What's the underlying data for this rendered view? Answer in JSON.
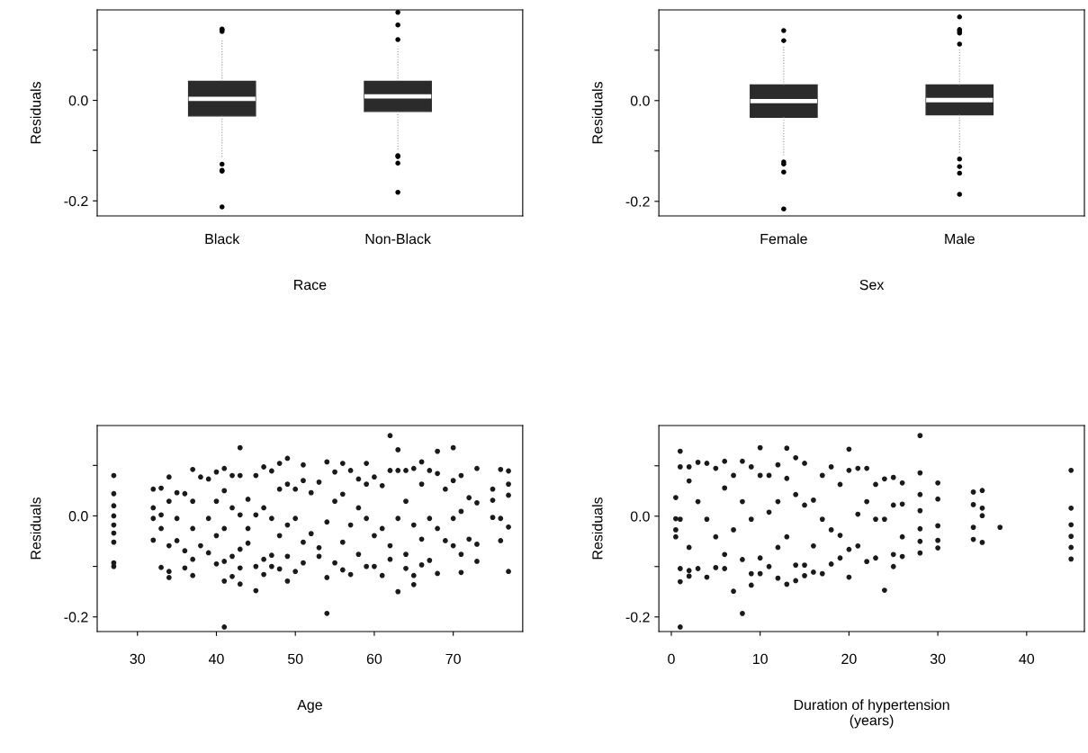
{
  "chart_data": [
    {
      "type": "box",
      "categories": [
        "Black",
        "Non-Black"
      ],
      "xlabel": "Race",
      "ylabel": "Residuals",
      "color": "#2b2b2b",
      "ylim": [
        -0.23,
        0.18
      ],
      "yticks": [
        {
          "value": -0.2,
          "label": "-0.2"
        },
        {
          "value": -0.1,
          "label": null
        },
        {
          "value": 0,
          "label": "0.0"
        },
        {
          "value": 0.1,
          "label": null
        }
      ],
      "boxes": [
        {
          "low": -0.114,
          "q1": -0.031,
          "median": 0.003,
          "q3": 0.038,
          "high": 0.122,
          "outliers": [
            0.142,
            0.14,
            0.137,
            -0.127,
            -0.139,
            -0.141,
            -0.212
          ]
        },
        {
          "low": -0.099,
          "q1": -0.022,
          "median": 0.008,
          "q3": 0.038,
          "high": 0.107,
          "outliers": [
            0.175,
            0.15,
            0.121,
            -0.11,
            -0.112,
            -0.125,
            -0.183
          ]
        }
      ]
    },
    {
      "type": "box",
      "categories": [
        "Female",
        "Male"
      ],
      "xlabel": "Sex",
      "ylabel": "Residuals",
      "color": "#2b2b2b",
      "ylim": [
        -0.229,
        0.18
      ],
      "yticks": [
        {
          "value": -0.2,
          "label": "-0.2"
        },
        {
          "value": -0.1,
          "label": null
        },
        {
          "value": 0,
          "label": "0.0"
        },
        {
          "value": 0.1,
          "label": null
        }
      ],
      "boxes": [
        {
          "low": -0.111,
          "q1": -0.033,
          "median": -0.001,
          "q3": 0.031,
          "high": 0.108,
          "outliers": [
            0.139,
            0.119,
            -0.122,
            -0.126,
            -0.142,
            -0.215
          ]
        },
        {
          "low": -0.104,
          "q1": -0.028,
          "median": 0.001,
          "q3": 0.031,
          "high": 0.101,
          "outliers": [
            0.166,
            0.141,
            0.138,
            0.134,
            0.112,
            -0.116,
            -0.131,
            -0.144,
            -0.186
          ]
        }
      ]
    },
    {
      "type": "scatter",
      "xlabel": "Age",
      "ylabel": "Residuals",
      "color": "#1a1a1a",
      "marker": "circle",
      "xlim": [
        24.9,
        78.8
      ],
      "xticks": [
        30,
        40,
        50,
        60,
        70
      ],
      "ylim": [
        -0.229,
        0.179
      ],
      "yticks": [
        {
          "value": -0.2,
          "label": "-0.2"
        },
        {
          "value": -0.1,
          "label": null
        },
        {
          "value": 0,
          "label": "0.0"
        },
        {
          "value": 0.1,
          "label": null
        }
      ],
      "x": [
        27,
        27,
        27,
        27,
        27,
        27,
        27,
        27,
        27,
        32,
        32,
        32,
        32,
        33,
        33,
        33,
        33,
        34,
        34,
        34,
        34,
        34,
        35,
        35,
        35,
        36,
        36,
        36,
        37,
        37,
        37,
        37,
        37,
        38,
        38,
        39,
        39,
        39,
        40,
        40,
        40,
        40,
        41,
        41,
        41,
        41,
        41,
        41,
        42,
        42,
        42,
        42,
        43,
        43,
        43,
        43,
        43,
        43,
        44,
        44,
        44,
        45,
        45,
        45,
        45,
        46,
        46,
        46,
        46,
        47,
        47,
        47,
        47,
        48,
        48,
        48,
        48,
        49,
        49,
        49,
        49,
        49,
        50,
        50,
        50,
        51,
        51,
        51,
        51,
        52,
        52,
        53,
        53,
        53,
        54,
        54,
        54,
        54,
        55,
        55,
        55,
        56,
        56,
        56,
        56,
        57,
        57,
        57,
        58,
        58,
        58,
        59,
        59,
        59,
        59,
        60,
        60,
        60,
        61,
        61,
        61,
        62,
        62,
        62,
        62,
        63,
        63,
        63,
        63,
        64,
        64,
        64,
        64,
        65,
        65,
        65,
        65,
        66,
        66,
        66,
        66,
        67,
        67,
        67,
        68,
        68,
        68,
        68,
        69,
        69,
        70,
        70,
        70,
        70,
        71,
        71,
        71,
        71,
        72,
        72,
        73,
        73,
        73,
        73,
        75,
        75,
        75,
        76,
        76,
        76,
        77,
        77,
        77,
        77,
        77
      ],
      "values": [
        0.08,
        0.044,
        0.02,
        0.0,
        -0.018,
        -0.034,
        -0.052,
        -0.093,
        -0.1,
        0.053,
        0.016,
        -0.005,
        -0.048,
        0.055,
        0.002,
        -0.025,
        -0.102,
        0.077,
        0.029,
        -0.059,
        -0.11,
        -0.122,
        0.046,
        -0.005,
        -0.049,
        0.044,
        -0.069,
        -0.103,
        0.092,
        0.029,
        -0.025,
        -0.086,
        -0.118,
        0.077,
        -0.059,
        0.073,
        -0.005,
        -0.073,
        0.087,
        0.029,
        -0.039,
        -0.095,
        0.094,
        0.05,
        -0.025,
        -0.09,
        -0.129,
        -0.22,
        0.08,
        0.016,
        -0.08,
        -0.12,
        0.135,
        0.08,
        0.002,
        -0.066,
        -0.103,
        -0.135,
        0.033,
        -0.025,
        -0.054,
        0.08,
        0.002,
        -0.1,
        -0.148,
        0.097,
        0.016,
        -0.086,
        -0.116,
        0.089,
        -0.005,
        -0.078,
        -0.1,
        0.104,
        0.053,
        -0.039,
        -0.105,
        0.114,
        0.063,
        -0.018,
        -0.08,
        -0.129,
        0.053,
        -0.005,
        -0.11,
        0.101,
        0.07,
        -0.052,
        -0.093,
        0.046,
        -0.035,
        0.067,
        -0.063,
        -0.08,
        0.107,
        -0.012,
        -0.122,
        -0.193,
        0.087,
        0.029,
        -0.093,
        0.104,
        0.043,
        -0.052,
        -0.107,
        0.09,
        -0.018,
        -0.116,
        0.073,
        0.016,
        -0.076,
        0.104,
        0.063,
        -0.005,
        -0.1,
        0.077,
        -0.039,
        -0.1,
        0.06,
        -0.025,
        -0.118,
        0.159,
        0.09,
        -0.059,
        -0.086,
        0.131,
        0.09,
        -0.005,
        -0.15,
        0.09,
        0.029,
        -0.076,
        -0.104,
        0.094,
        -0.018,
        -0.118,
        -0.136,
        0.107,
        0.063,
        -0.046,
        -0.097,
        0.09,
        -0.005,
        -0.088,
        0.128,
        0.084,
        -0.025,
        -0.114,
        0.053,
        -0.049,
        0.135,
        0.07,
        -0.005,
        -0.059,
        0.08,
        0.009,
        -0.076,
        -0.112,
        0.036,
        -0.046,
        0.094,
        0.026,
        -0.056,
        -0.09,
        0.053,
        0.031,
        -0.003,
        0.092,
        -0.005,
        -0.049,
        0.089,
        0.063,
        0.041,
        -0.022,
        -0.11
      ]
    },
    {
      "type": "scatter",
      "xlabel": "Duration of hypertension\n(years)",
      "ylabel": "Residuals",
      "color": "#1a1a1a",
      "marker": "circle",
      "xlim": [
        -1.4,
        46.5
      ],
      "xticks": [
        0,
        10,
        20,
        30,
        40
      ],
      "ylim": [
        -0.229,
        0.18
      ],
      "yticks": [
        {
          "value": -0.2,
          "label": "-0.2"
        },
        {
          "value": -0.1,
          "label": null
        },
        {
          "value": 0,
          "label": "0.0"
        },
        {
          "value": 0.1,
          "label": null
        }
      ],
      "x": [
        0.5,
        0.5,
        0.5,
        0.5,
        1,
        1,
        1,
        1,
        1,
        1,
        2,
        2,
        2,
        2,
        2,
        3,
        3,
        3,
        4,
        4,
        4,
        5,
        5,
        5,
        6,
        6,
        6,
        6,
        7,
        7,
        7,
        8,
        8,
        8,
        8,
        9,
        9,
        9,
        9,
        10,
        10,
        10,
        10,
        11,
        11,
        11,
        12,
        12,
        12,
        12,
        13,
        13,
        13,
        13,
        14,
        14,
        14,
        14,
        15,
        15,
        15,
        15,
        16,
        16,
        16,
        17,
        17,
        17,
        18,
        18,
        18,
        19,
        19,
        19,
        20,
        20,
        20,
        20,
        21,
        21,
        21,
        22,
        22,
        22,
        23,
        23,
        23,
        24,
        24,
        24,
        25,
        25,
        25,
        25,
        26,
        26,
        26,
        26,
        28,
        28,
        28,
        28,
        28,
        28,
        28,
        30,
        30,
        30,
        30,
        30,
        34,
        34,
        34,
        34,
        35,
        35,
        35,
        35,
        37,
        45,
        45,
        45,
        45,
        45,
        45
      ],
      "values": [
        0.037,
        -0.005,
        -0.027,
        -0.041,
        0.129,
        0.098,
        -0.006,
        -0.104,
        -0.13,
        -0.22,
        0.098,
        0.07,
        -0.062,
        -0.108,
        -0.119,
        0.107,
        0.029,
        -0.104,
        0.105,
        -0.006,
        -0.121,
        0.095,
        -0.041,
        -0.102,
        0.109,
        0.056,
        -0.076,
        -0.104,
        0.081,
        -0.027,
        -0.149,
        0.109,
        0.029,
        -0.086,
        -0.193,
        0.098,
        -0.006,
        -0.114,
        -0.137,
        0.136,
        0.081,
        -0.083,
        -0.114,
        0.081,
        0.008,
        -0.1,
        0.102,
        0.029,
        -0.062,
        -0.123,
        0.135,
        0.075,
        -0.041,
        -0.135,
        0.116,
        0.043,
        -0.097,
        -0.128,
        0.105,
        0.022,
        -0.097,
        -0.118,
        0.032,
        -0.059,
        -0.111,
        0.081,
        -0.006,
        -0.114,
        0.098,
        -0.027,
        -0.095,
        0.063,
        -0.038,
        -0.083,
        0.133,
        0.091,
        -0.066,
        -0.121,
        0.095,
        0.004,
        -0.059,
        0.095,
        0.029,
        -0.09,
        0.063,
        -0.006,
        -0.083,
        0.074,
        -0.006,
        -0.147,
        0.077,
        0.022,
        -0.076,
        -0.1,
        0.066,
        0.024,
        -0.041,
        -0.08,
        0.16,
        0.086,
        0.043,
        0.011,
        -0.025,
        -0.05,
        -0.073,
        0.066,
        0.034,
        -0.019,
        -0.048,
        -0.063,
        0.048,
        0.023,
        -0.022,
        -0.046,
        0.051,
        0.016,
        0.001,
        -0.052,
        -0.022,
        0.091,
        0.016,
        -0.017,
        -0.04,
        -0.062,
        -0.085
      ]
    }
  ]
}
